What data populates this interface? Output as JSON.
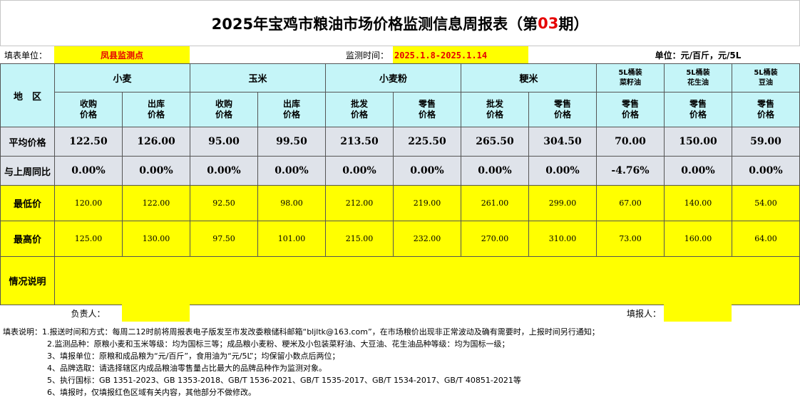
{
  "title": {
    "part1": "2025年宝鸡市粮油市场价格监测信息周报表（第",
    "issue": "03",
    "part2": "期）"
  },
  "info": {
    "unit_label": "填表单位：",
    "unit_value": "凤县监测点",
    "time_label": "监测时间：",
    "time_value": "2025.1.8-2025.1.14",
    "unit_right": "单位：元/百斤，元/5L"
  },
  "header": {
    "region": "地　区",
    "groups": [
      "小麦",
      "玉米",
      "小麦粉",
      "粳米"
    ],
    "oil_groups": [
      [
        "5L桶装",
        "菜籽油"
      ],
      [
        "5L桶装",
        "花生油"
      ],
      [
        "5L桶装",
        "豆油"
      ]
    ],
    "sub": [
      [
        "收购",
        "价格"
      ],
      [
        "出库",
        "价格"
      ],
      [
        "收购",
        "价格"
      ],
      [
        "出库",
        "价格"
      ],
      [
        "批发",
        "价格"
      ],
      [
        "零售",
        "价格"
      ],
      [
        "批发",
        "价格"
      ],
      [
        "零售",
        "价格"
      ],
      [
        "零售",
        "价格"
      ],
      [
        "零售",
        "价格"
      ],
      [
        "零售",
        "价格"
      ]
    ]
  },
  "rows": {
    "avg": {
      "label": "平均价格",
      "values": [
        "122.50",
        "126.00",
        "95.00",
        "99.50",
        "213.50",
        "225.50",
        "265.50",
        "304.50",
        "70.00",
        "150.00",
        "59.00"
      ]
    },
    "yoy": {
      "label": "与上周同比",
      "values": [
        "0.00%",
        "0.00%",
        "0.00%",
        "0.00%",
        "0.00%",
        "0.00%",
        "0.00%",
        "0.00%",
        "-4.76%",
        "0.00%",
        "0.00%"
      ]
    },
    "min": {
      "label": "最低价",
      "values": [
        "120.00",
        "122.00",
        "92.50",
        "98.00",
        "212.00",
        "219.00",
        "261.00",
        "299.00",
        "67.00",
        "140.00",
        "54.00"
      ]
    },
    "max": {
      "label": "最高价",
      "values": [
        "125.00",
        "130.00",
        "97.50",
        "101.00",
        "215.00",
        "232.00",
        "270.00",
        "310.00",
        "73.00",
        "160.00",
        "64.00"
      ]
    },
    "note": {
      "label": "情况说明"
    }
  },
  "footer": {
    "responsible": "负责人：",
    "filler": "填报人："
  },
  "notes": [
    "填表说明：1.报送时间和方式：每周二12时前将周报表电子版发至市发改委粮储科邮箱“bljltk@163.com”，在市场粮价出现非正常波动及确有需要时，上报时间另行通知；",
    "2.监测品种：原粮小麦和玉米等级：均为国标三等；成品粮小麦粉、粳米及小包装菜籽油、大豆油、花生油品种等级：均为国标一级；",
    "3、填报单位：原粮和成品粮为“元/百斤”，食用油为“元/5L”；均保留小数点后两位；",
    "4、品牌选取：请选择辖区内成品粮油零售量占比最大的品牌品种作为监测对象。",
    "5、执行国标：GB 1351-2023、GB 1353-2018、GB/T 1536-2021、GB/T 1535-2017、GB/T 1534-2017、GB/T 40851-2021等",
    "6、填报时，仅填报红色区域有关内容，其他部分不做修改。"
  ]
}
